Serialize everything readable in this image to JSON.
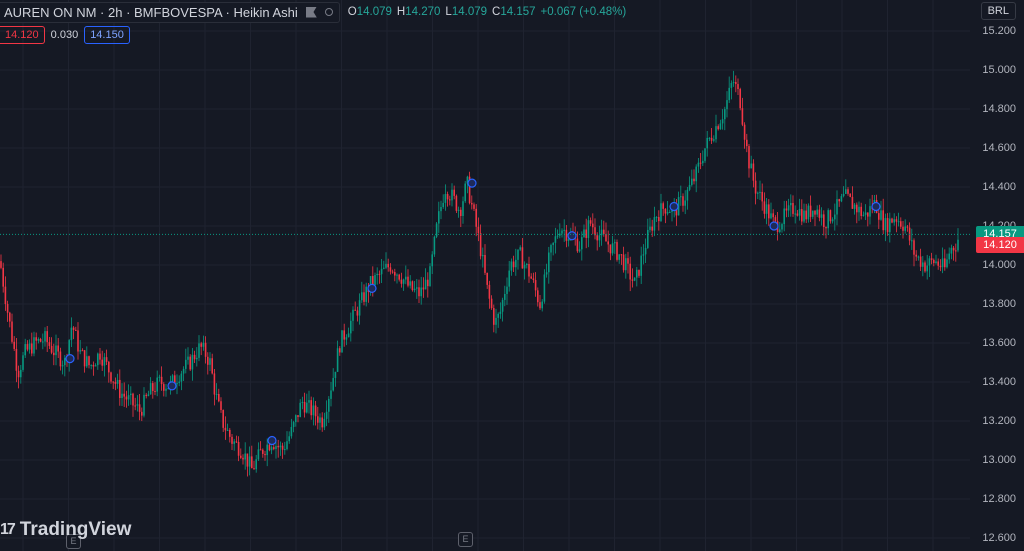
{
  "header": {
    "title": "AUREN ON NM · 2h · BMFBOVESPA · Heikin Ashi",
    "ohlc": {
      "o_label": "O",
      "o_value": "14.079",
      "h_label": "H",
      "h_value": "14.270",
      "l_label": "L",
      "l_value": "14.079",
      "c_label": "C",
      "c_value": "14.157",
      "change": "+0.067 (+0.48%)"
    },
    "bid": "14.120",
    "spread": "0.030",
    "ask": "14.150"
  },
  "currency": "BRL",
  "price_axis": {
    "labels": [
      "15.200",
      "15.000",
      "14.800",
      "14.600",
      "14.400",
      "14.200",
      "14.000",
      "13.800",
      "13.600",
      "13.400",
      "13.200",
      "13.000",
      "12.800",
      "12.600"
    ],
    "last_price_tag": "14.157",
    "bid_tag": "14.120"
  },
  "markers": {
    "earnings_left": "E",
    "earnings_mid": "E"
  },
  "logo": {
    "text": "TradingView",
    "mark": "17"
  },
  "colors": {
    "bg": "#151924",
    "up": "#089981",
    "down": "#f23645",
    "grid": "#1f2330",
    "event_dot": "#2962ff"
  },
  "chart_data": {
    "type": "candlestick-heikin-ashi",
    "ylim": [
      12.6,
      15.2
    ],
    "last_price": 14.157,
    "bid_price": 14.12,
    "path_keypoints": [
      [
        0,
        14.02
      ],
      [
        8,
        13.75
      ],
      [
        18,
        13.45
      ],
      [
        25,
        13.55
      ],
      [
        35,
        13.6
      ],
      [
        45,
        13.62
      ],
      [
        55,
        13.55
      ],
      [
        65,
        13.5
      ],
      [
        72,
        13.7
      ],
      [
        80,
        13.55
      ],
      [
        90,
        13.48
      ],
      [
        100,
        13.55
      ],
      [
        110,
        13.45
      ],
      [
        120,
        13.35
      ],
      [
        130,
        13.3
      ],
      [
        140,
        13.25
      ],
      [
        150,
        13.35
      ],
      [
        160,
        13.4
      ],
      [
        170,
        13.38
      ],
      [
        180,
        13.45
      ],
      [
        190,
        13.5
      ],
      [
        200,
        13.58
      ],
      [
        205,
        13.55
      ],
      [
        210,
        13.5
      ],
      [
        215,
        13.35
      ],
      [
        222,
        13.2
      ],
      [
        232,
        13.1
      ],
      [
        242,
        13.05
      ],
      [
        252,
        12.95
      ],
      [
        262,
        13.05
      ],
      [
        272,
        13.1
      ],
      [
        282,
        13.05
      ],
      [
        292,
        13.15
      ],
      [
        302,
        13.3
      ],
      [
        312,
        13.25
      ],
      [
        322,
        13.2
      ],
      [
        332,
        13.4
      ],
      [
        340,
        13.6
      ],
      [
        350,
        13.7
      ],
      [
        360,
        13.8
      ],
      [
        370,
        13.9
      ],
      [
        380,
        13.95
      ],
      [
        390,
        14.0
      ],
      [
        400,
        13.95
      ],
      [
        410,
        13.88
      ],
      [
        420,
        13.85
      ],
      [
        430,
        13.95
      ],
      [
        437,
        14.2
      ],
      [
        445,
        14.4
      ],
      [
        452,
        14.35
      ],
      [
        460,
        14.28
      ],
      [
        467,
        14.42
      ],
      [
        474,
        14.25
      ],
      [
        480,
        14.1
      ],
      [
        488,
        13.85
      ],
      [
        495,
        13.7
      ],
      [
        500,
        13.75
      ],
      [
        510,
        14.0
      ],
      [
        520,
        14.05
      ],
      [
        530,
        13.95
      ],
      [
        540,
        13.8
      ],
      [
        550,
        14.05
      ],
      [
        560,
        14.2
      ],
      [
        570,
        14.15
      ],
      [
        580,
        14.1
      ],
      [
        590,
        14.22
      ],
      [
        600,
        14.15
      ],
      [
        610,
        14.1
      ],
      [
        620,
        14.05
      ],
      [
        630,
        13.95
      ],
      [
        635,
        13.9
      ],
      [
        645,
        14.1
      ],
      [
        655,
        14.25
      ],
      [
        665,
        14.3
      ],
      [
        675,
        14.28
      ],
      [
        685,
        14.35
      ],
      [
        695,
        14.45
      ],
      [
        705,
        14.6
      ],
      [
        715,
        14.7
      ],
      [
        725,
        14.8
      ],
      [
        733,
        14.95
      ],
      [
        740,
        14.85
      ],
      [
        748,
        14.55
      ],
      [
        755,
        14.4
      ],
      [
        765,
        14.3
      ],
      [
        775,
        14.2
      ],
      [
        785,
        14.25
      ],
      [
        795,
        14.3
      ],
      [
        805,
        14.25
      ],
      [
        815,
        14.3
      ],
      [
        825,
        14.22
      ],
      [
        835,
        14.28
      ],
      [
        845,
        14.35
      ],
      [
        855,
        14.3
      ],
      [
        865,
        14.25
      ],
      [
        875,
        14.32
      ],
      [
        885,
        14.2
      ],
      [
        895,
        14.25
      ],
      [
        905,
        14.2
      ],
      [
        915,
        14.05
      ],
      [
        925,
        14.0
      ],
      [
        935,
        14.02
      ],
      [
        945,
        13.98
      ],
      [
        950,
        14.08
      ],
      [
        955,
        14.1
      ],
      [
        960,
        14.157
      ]
    ],
    "event_points": [
      [
        70,
        13.52
      ],
      [
        172,
        13.38
      ],
      [
        272,
        13.1
      ],
      [
        372,
        13.88
      ],
      [
        472,
        14.42
      ],
      [
        572,
        14.15
      ],
      [
        674,
        14.3
      ],
      [
        774,
        14.2
      ],
      [
        876,
        14.3
      ]
    ]
  }
}
